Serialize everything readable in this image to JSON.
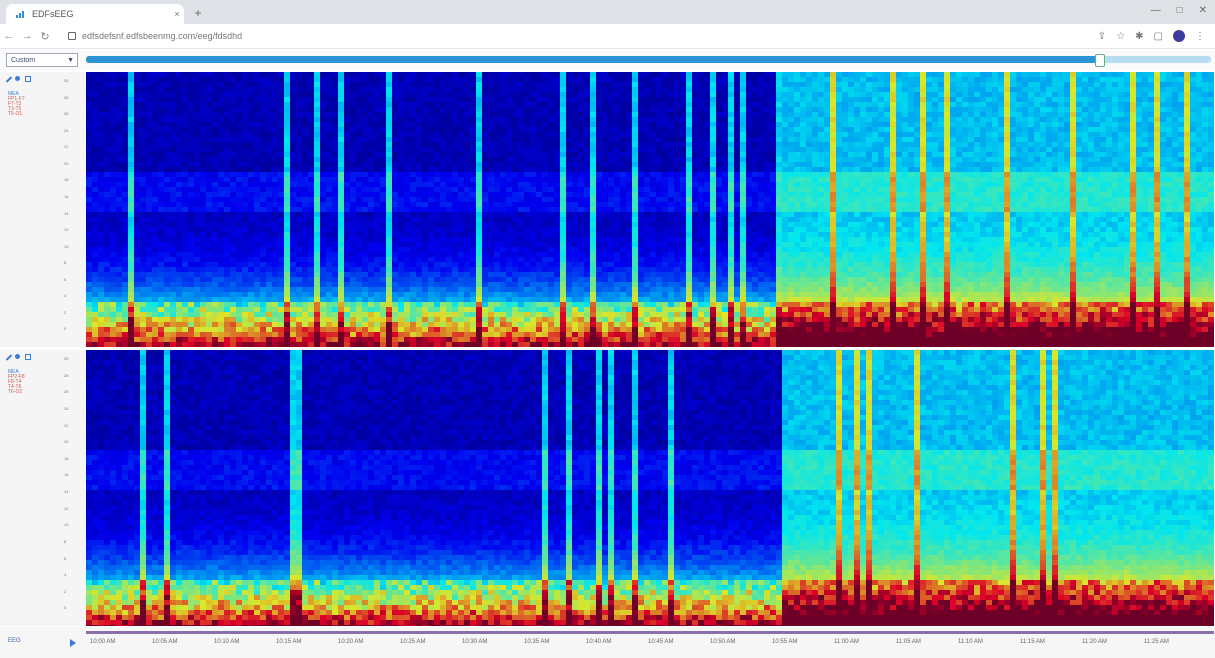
{
  "browser": {
    "tab_title": "EDFsEEG",
    "new_tab": "+",
    "tab_close": "×",
    "url": "edfsdefsnf.edfsbeenmg.com/eeg/fdsdhd",
    "win_controls": [
      "—",
      "□",
      "✕"
    ]
  },
  "app": {
    "montage": "Custom",
    "scroll_position": 0.9,
    "bottom_label": "EEG",
    "channel_labels": [
      "MEA",
      "FP1-F7",
      "F7-T3",
      "T3-T5",
      "T5-O1",
      "FP2-F8",
      "F8-T4",
      "T4-T6",
      "T6-O2"
    ]
  },
  "colors": {
    "accent": "#2a94d4",
    "timeline": "#8a6fa8",
    "spectrogram_low": "#05004a",
    "spectrogram_high": "#d11a00"
  },
  "icons": [
    "pencil-icon",
    "pin-icon",
    "expand-icon",
    "play-icon",
    "lock-icon",
    "reload-icon",
    "back-icon",
    "forward-icon",
    "profile-icon"
  ],
  "time_axis": {
    "labels": [
      "10:00 AM",
      "10:05 AM",
      "10:10 AM",
      "10:15 AM",
      "10:20 AM",
      "10:25 AM",
      "10:30 AM",
      "10:35 AM",
      "10:40 AM",
      "10:45 AM",
      "10:50 AM",
      "10:55 AM",
      "11:00 AM",
      "11:05 AM",
      "11:10 AM",
      "11:15 AM",
      "11:20 AM",
      "11:25 AM"
    ]
  },
  "freq_ticks": [
    "30",
    "28",
    "26",
    "24",
    "22",
    "20",
    "18",
    "16",
    "14",
    "12",
    "10",
    "8",
    "6",
    "4",
    "2",
    "0"
  ]
}
